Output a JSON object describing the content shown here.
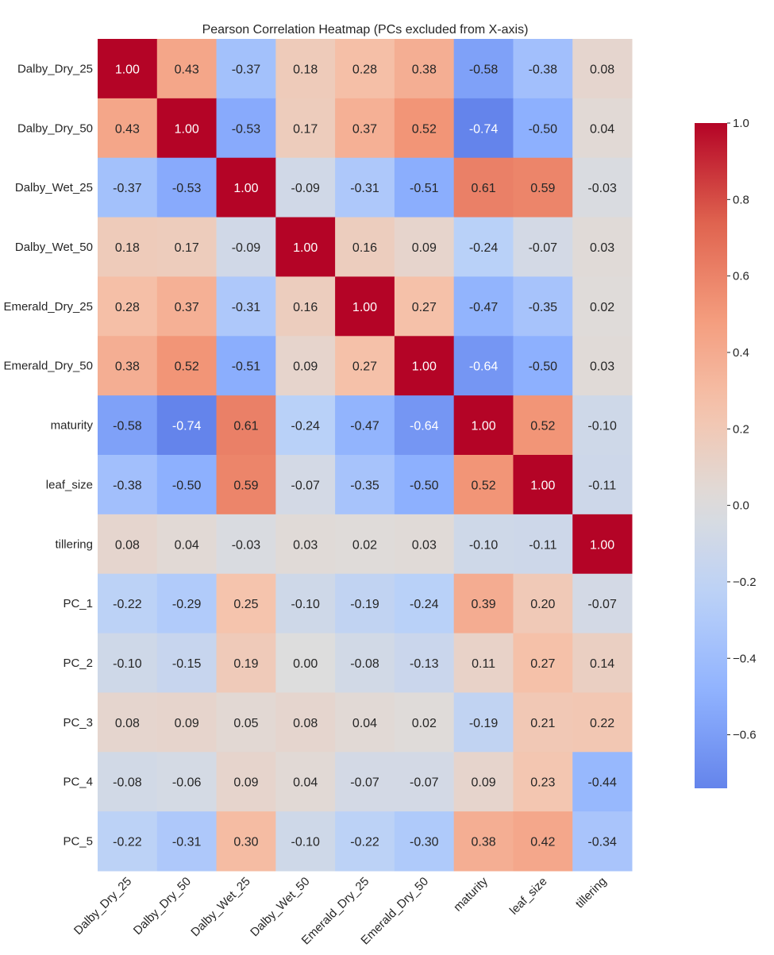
{
  "chart_data": {
    "type": "heatmap",
    "title": "Pearson Correlation Heatmap (PCs excluded from X-axis)",
    "columns": [
      "Dalby_Dry_25",
      "Dalby_Dry_50",
      "Dalby_Wet_25",
      "Dalby_Wet_50",
      "Emerald_Dry_25",
      "Emerald_Dry_50",
      "maturity",
      "leaf_size",
      "tillering"
    ],
    "rows": [
      "Dalby_Dry_25",
      "Dalby_Dry_50",
      "Dalby_Wet_25",
      "Dalby_Wet_50",
      "Emerald_Dry_25",
      "Emerald_Dry_50",
      "maturity",
      "leaf_size",
      "tillering",
      "PC_1",
      "PC_2",
      "PC_3",
      "PC_4",
      "PC_5"
    ],
    "values": [
      [
        1.0,
        0.43,
        -0.37,
        0.18,
        0.28,
        0.38,
        -0.58,
        -0.38,
        0.08
      ],
      [
        0.43,
        1.0,
        -0.53,
        0.17,
        0.37,
        0.52,
        -0.74,
        -0.5,
        0.04
      ],
      [
        -0.37,
        -0.53,
        1.0,
        -0.09,
        -0.31,
        -0.51,
        0.61,
        0.59,
        -0.03
      ],
      [
        0.18,
        0.17,
        -0.09,
        1.0,
        0.16,
        0.09,
        -0.24,
        -0.07,
        0.03
      ],
      [
        0.28,
        0.37,
        -0.31,
        0.16,
        1.0,
        0.27,
        -0.47,
        -0.35,
        0.02
      ],
      [
        0.38,
        0.52,
        -0.51,
        0.09,
        0.27,
        1.0,
        -0.64,
        -0.5,
        0.03
      ],
      [
        -0.58,
        -0.74,
        0.61,
        -0.24,
        -0.47,
        -0.64,
        1.0,
        0.52,
        -0.1
      ],
      [
        -0.38,
        -0.5,
        0.59,
        -0.07,
        -0.35,
        -0.5,
        0.52,
        1.0,
        -0.11
      ],
      [
        0.08,
        0.04,
        -0.03,
        0.03,
        0.02,
        0.03,
        -0.1,
        -0.11,
        1.0
      ],
      [
        -0.22,
        -0.29,
        0.25,
        -0.1,
        -0.19,
        -0.24,
        0.39,
        0.2,
        -0.07
      ],
      [
        -0.1,
        -0.15,
        0.19,
        0.0,
        -0.08,
        -0.13,
        0.11,
        0.27,
        0.14
      ],
      [
        0.08,
        0.09,
        0.05,
        0.08,
        0.04,
        0.02,
        -0.19,
        0.21,
        0.22
      ],
      [
        -0.08,
        -0.06,
        0.09,
        0.04,
        -0.07,
        -0.07,
        0.09,
        0.23,
        -0.44
      ],
      [
        -0.22,
        -0.31,
        0.3,
        -0.1,
        -0.22,
        -0.3,
        0.38,
        0.42,
        -0.34
      ]
    ],
    "colormap": "coolwarm",
    "color_range": [
      -0.74,
      1.0
    ],
    "colorbar_ticks": [
      1.0,
      0.8,
      0.6,
      0.4,
      0.2,
      0.0,
      -0.2,
      -0.4,
      -0.6
    ],
    "colorbar_tick_labels": [
      "1.0",
      "0.8",
      "0.6",
      "0.4",
      "0.2",
      "0.0",
      "−0.2",
      "−0.4",
      "−0.6"
    ],
    "annotation_format": "0.00",
    "xlabel": "",
    "ylabel": ""
  }
}
